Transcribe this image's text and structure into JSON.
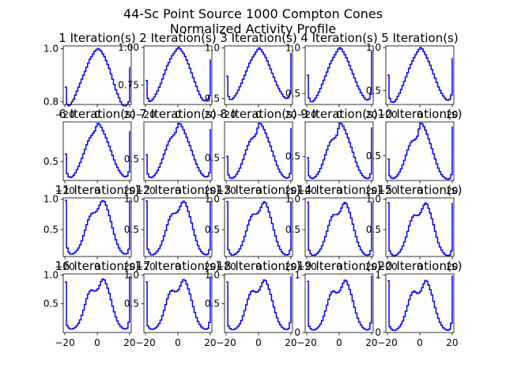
{
  "figure": {
    "title_line1": "44-Sc Point Source 1000 Compton Cones",
    "title_line2": "Normalized Activity Profile"
  },
  "chart_data": {
    "type": "line",
    "line_color": "#0000ff",
    "grid": false,
    "title": "44-Sc Point Source 1000 Compton Cones Normalized Activity Profile",
    "x": [
      -20,
      -19,
      -18,
      -17,
      -16,
      -15,
      -14,
      -13,
      -12,
      -11,
      -10,
      -9,
      -8,
      -7,
      -6,
      -5,
      -4,
      -3,
      -2,
      -1,
      0,
      1,
      2,
      3,
      4,
      5,
      6,
      7,
      8,
      9,
      10,
      11,
      12,
      13,
      14,
      15,
      16,
      17,
      18,
      19,
      20
    ],
    "xlim": [
      -21,
      21
    ],
    "xticks": [
      -20,
      0,
      20
    ],
    "panels": [
      {
        "title": "1 Iteration(s)",
        "ylim": [
          0.79,
          1.01
        ],
        "yticks": [
          0.8,
          1.0
        ],
        "ytick_labels": [
          "0.8",
          "1.0"
        ],
        "values": [
          0.855,
          0.79,
          0.785,
          0.79,
          0.8,
          0.81,
          0.825,
          0.84,
          0.855,
          0.87,
          0.885,
          0.9,
          0.915,
          0.93,
          0.945,
          0.96,
          0.97,
          0.98,
          0.99,
          0.995,
          1.0,
          0.995,
          0.99,
          0.98,
          0.97,
          0.955,
          0.94,
          0.925,
          0.905,
          0.885,
          0.865,
          0.845,
          0.83,
          0.815,
          0.8,
          0.79,
          0.785,
          0.785,
          0.79,
          0.8,
          0.93
        ]
      },
      {
        "title": "2 Iteration(s)",
        "ylim": [
          0.62,
          1.01
        ],
        "yticks": [
          0.75,
          1.0
        ],
        "ytick_labels": [
          "0.75",
          "1.00"
        ],
        "values": [
          0.78,
          0.66,
          0.64,
          0.645,
          0.655,
          0.67,
          0.69,
          0.71,
          0.735,
          0.76,
          0.79,
          0.82,
          0.85,
          0.88,
          0.9,
          0.925,
          0.945,
          0.96,
          0.975,
          0.99,
          1.0,
          0.99,
          0.975,
          0.96,
          0.94,
          0.915,
          0.89,
          0.86,
          0.83,
          0.8,
          0.77,
          0.74,
          0.71,
          0.685,
          0.665,
          0.65,
          0.645,
          0.645,
          0.655,
          0.68,
          0.92
        ]
      },
      {
        "title": "3 Iteration(s)",
        "ylim": [
          0.44,
          1.02
        ],
        "yticks": [
          0.5,
          1.0
        ],
        "ytick_labels": [
          "0.5",
          "1.0"
        ],
        "values": [
          0.72,
          0.52,
          0.49,
          0.49,
          0.505,
          0.525,
          0.55,
          0.58,
          0.615,
          0.65,
          0.69,
          0.73,
          0.77,
          0.81,
          0.85,
          0.88,
          0.91,
          0.935,
          0.96,
          0.985,
          1.0,
          0.985,
          0.96,
          0.935,
          0.905,
          0.87,
          0.83,
          0.79,
          0.75,
          0.71,
          0.67,
          0.63,
          0.6,
          0.57,
          0.545,
          0.52,
          0.505,
          0.5,
          0.51,
          0.55,
          0.95
        ]
      },
      {
        "title": "4 Iteration(s)",
        "ylim": [
          0.38,
          1.02
        ],
        "yticks": [
          0.5,
          1.0
        ],
        "ytick_labels": [
          "0.5",
          "1.0"
        ],
        "values": [
          0.7,
          0.45,
          0.41,
          0.41,
          0.425,
          0.45,
          0.48,
          0.515,
          0.555,
          0.6,
          0.645,
          0.69,
          0.735,
          0.78,
          0.825,
          0.86,
          0.895,
          0.925,
          0.955,
          0.985,
          1.0,
          0.985,
          0.955,
          0.925,
          0.89,
          0.85,
          0.805,
          0.76,
          0.715,
          0.67,
          0.625,
          0.58,
          0.545,
          0.51,
          0.48,
          0.455,
          0.435,
          0.43,
          0.44,
          0.49,
          0.97
        ]
      },
      {
        "title": "5 Iteration(s)",
        "ylim": [
          0.34,
          1.02
        ],
        "yticks": [
          0.5,
          1.0
        ],
        "ytick_labels": [
          "0.5",
          "1.0"
        ],
        "values": [
          0.68,
          0.41,
          0.37,
          0.365,
          0.375,
          0.4,
          0.435,
          0.47,
          0.515,
          0.56,
          0.61,
          0.66,
          0.71,
          0.76,
          0.805,
          0.845,
          0.885,
          0.92,
          0.95,
          0.98,
          1.0,
          0.985,
          0.955,
          0.92,
          0.88,
          0.84,
          0.795,
          0.745,
          0.695,
          0.645,
          0.595,
          0.545,
          0.505,
          0.47,
          0.44,
          0.415,
          0.395,
          0.39,
          0.4,
          0.45,
          0.88
        ]
      },
      {
        "title": "6 Iteration(s)",
        "ylim": [
          0.25,
          1.02
        ],
        "yticks": [
          0.5
        ],
        "ytick_labels": [
          "0.5"
        ],
        "values": [
          0.6,
          0.34,
          0.3,
          0.29,
          0.3,
          0.32,
          0.35,
          0.39,
          0.435,
          0.485,
          0.54,
          0.6,
          0.66,
          0.72,
          0.77,
          0.81,
          0.84,
          0.87,
          0.9,
          0.96,
          1.0,
          0.985,
          0.95,
          0.905,
          0.86,
          0.81,
          0.755,
          0.7,
          0.64,
          0.58,
          0.52,
          0.465,
          0.42,
          0.38,
          0.35,
          0.325,
          0.305,
          0.3,
          0.31,
          0.36,
          0.9
        ]
      },
      {
        "title": "7 Iteration(s)",
        "ylim": [
          0.2,
          1.02
        ],
        "yticks": [
          0.5
        ],
        "ytick_labels": [
          "0.5"
        ],
        "values": [
          0.56,
          0.29,
          0.25,
          0.24,
          0.25,
          0.27,
          0.3,
          0.34,
          0.385,
          0.44,
          0.5,
          0.565,
          0.63,
          0.695,
          0.75,
          0.79,
          0.815,
          0.84,
          0.87,
          0.94,
          1.0,
          0.99,
          0.955,
          0.91,
          0.86,
          0.805,
          0.745,
          0.685,
          0.62,
          0.555,
          0.49,
          0.43,
          0.38,
          0.335,
          0.3,
          0.275,
          0.255,
          0.25,
          0.26,
          0.31,
          0.92
        ]
      },
      {
        "title": "8 Iteration(s)",
        "ylim": [
          0.17,
          1.02
        ],
        "yticks": [
          0.5
        ],
        "ytick_labels": [
          "0.5"
        ],
        "values": [
          0.52,
          0.25,
          0.21,
          0.2,
          0.21,
          0.23,
          0.26,
          0.3,
          0.35,
          0.41,
          0.475,
          0.545,
          0.615,
          0.68,
          0.735,
          0.77,
          0.79,
          0.81,
          0.845,
          0.93,
          1.0,
          0.99,
          0.955,
          0.91,
          0.855,
          0.795,
          0.73,
          0.665,
          0.595,
          0.525,
          0.455,
          0.39,
          0.335,
          0.29,
          0.255,
          0.23,
          0.21,
          0.205,
          0.215,
          0.27,
          0.93
        ]
      },
      {
        "title": "9 Iteration(s)",
        "ylim": [
          0.14,
          1.02
        ],
        "yticks": [
          0.5
        ],
        "ytick_labels": [
          "0.5"
        ],
        "values": [
          0.48,
          0.21,
          0.18,
          0.17,
          0.18,
          0.2,
          0.23,
          0.27,
          0.32,
          0.38,
          0.45,
          0.525,
          0.6,
          0.665,
          0.72,
          0.75,
          0.765,
          0.785,
          0.82,
          0.92,
          1.0,
          0.99,
          0.955,
          0.905,
          0.845,
          0.78,
          0.71,
          0.64,
          0.565,
          0.49,
          0.415,
          0.35,
          0.295,
          0.25,
          0.215,
          0.19,
          0.175,
          0.17,
          0.18,
          0.24,
          0.94
        ]
      },
      {
        "title": "10 Iteration(s)",
        "ylim": [
          0.12,
          1.02
        ],
        "yticks": [
          0.5
        ],
        "ytick_labels": [
          "0.5"
        ],
        "values": [
          0.45,
          0.19,
          0.16,
          0.15,
          0.16,
          0.18,
          0.21,
          0.25,
          0.3,
          0.36,
          0.43,
          0.51,
          0.59,
          0.655,
          0.705,
          0.73,
          0.74,
          0.76,
          0.8,
          0.91,
          1.0,
          0.99,
          0.95,
          0.895,
          0.83,
          0.76,
          0.685,
          0.61,
          0.53,
          0.45,
          0.375,
          0.31,
          0.255,
          0.21,
          0.18,
          0.16,
          0.145,
          0.14,
          0.15,
          0.21,
          0.95
        ]
      },
      {
        "title": "11 Iteration(s)",
        "ylim": [
          0.06,
          1.02
        ],
        "yticks": [
          0.5,
          1.0
        ],
        "ytick_labels": [
          "0.5",
          "1.0"
        ],
        "values": [
          0.98,
          0.2,
          0.13,
          0.1,
          0.1,
          0.11,
          0.13,
          0.16,
          0.2,
          0.25,
          0.32,
          0.4,
          0.49,
          0.58,
          0.66,
          0.72,
          0.76,
          0.775,
          0.78,
          0.8,
          0.84,
          0.9,
          0.955,
          0.975,
          0.96,
          0.9,
          0.82,
          0.73,
          0.63,
          0.525,
          0.425,
          0.335,
          0.26,
          0.2,
          0.155,
          0.125,
          0.105,
          0.1,
          0.11,
          0.18,
          0.98
        ]
      },
      {
        "title": "12 Iteration(s)",
        "ylim": [
          0.06,
          1.02
        ],
        "yticks": [
          0.5,
          1.0
        ],
        "ytick_labels": [
          "0.5",
          "1.0"
        ],
        "values": [
          0.97,
          0.18,
          0.12,
          0.09,
          0.09,
          0.1,
          0.12,
          0.15,
          0.19,
          0.245,
          0.315,
          0.395,
          0.485,
          0.58,
          0.66,
          0.72,
          0.755,
          0.765,
          0.77,
          0.785,
          0.82,
          0.88,
          0.94,
          0.965,
          0.945,
          0.88,
          0.8,
          0.71,
          0.61,
          0.505,
          0.405,
          0.315,
          0.24,
          0.18,
          0.14,
          0.11,
          0.095,
          0.09,
          0.1,
          0.17,
          0.97
        ]
      },
      {
        "title": "13 Iteration(s)",
        "ylim": [
          0.06,
          1.02
        ],
        "yticks": [
          0.5,
          1.0
        ],
        "ytick_labels": [
          "0.5",
          "1.0"
        ],
        "values": [
          0.96,
          0.17,
          0.11,
          0.085,
          0.085,
          0.095,
          0.115,
          0.145,
          0.185,
          0.24,
          0.31,
          0.39,
          0.48,
          0.575,
          0.655,
          0.715,
          0.75,
          0.755,
          0.755,
          0.77,
          0.805,
          0.865,
          0.925,
          0.955,
          0.935,
          0.87,
          0.79,
          0.7,
          0.6,
          0.495,
          0.395,
          0.305,
          0.23,
          0.175,
          0.135,
          0.105,
          0.09,
          0.085,
          0.095,
          0.16,
          0.96
        ]
      },
      {
        "title": "14 Iteration(s)",
        "ylim": [
          0.06,
          1.02
        ],
        "yticks": [
          0.5,
          1.0
        ],
        "ytick_labels": [
          "0.5",
          "1.0"
        ],
        "values": [
          0.95,
          0.16,
          0.105,
          0.08,
          0.08,
          0.09,
          0.11,
          0.14,
          0.18,
          0.235,
          0.305,
          0.385,
          0.475,
          0.57,
          0.65,
          0.71,
          0.745,
          0.745,
          0.745,
          0.76,
          0.795,
          0.855,
          0.915,
          0.945,
          0.925,
          0.86,
          0.78,
          0.69,
          0.59,
          0.485,
          0.385,
          0.295,
          0.225,
          0.17,
          0.13,
          0.1,
          0.085,
          0.08,
          0.09,
          0.155,
          0.95
        ]
      },
      {
        "title": "15 Iteration(s)",
        "ylim": [
          0.06,
          1.02
        ],
        "yticks": [
          0.5,
          1.0
        ],
        "ytick_labels": [
          "0.5",
          "1.0"
        ],
        "values": [
          0.94,
          0.15,
          0.1,
          0.075,
          0.075,
          0.085,
          0.105,
          0.135,
          0.175,
          0.23,
          0.3,
          0.38,
          0.47,
          0.565,
          0.645,
          0.705,
          0.74,
          0.735,
          0.73,
          0.745,
          0.78,
          0.84,
          0.9,
          0.935,
          0.915,
          0.85,
          0.77,
          0.68,
          0.58,
          0.475,
          0.375,
          0.285,
          0.215,
          0.165,
          0.125,
          0.095,
          0.08,
          0.075,
          0.085,
          0.15,
          0.94
        ]
      },
      {
        "title": "16 Iteration(s)",
        "ylim": [
          0.0,
          1.02
        ],
        "yticks": [
          0.5,
          1.0
        ],
        "ytick_labels": [
          "0.5",
          "1.0"
        ],
        "values": [
          0.88,
          0.12,
          0.08,
          0.06,
          0.06,
          0.07,
          0.09,
          0.12,
          0.16,
          0.22,
          0.3,
          0.39,
          0.49,
          0.59,
          0.67,
          0.72,
          0.74,
          0.73,
          0.72,
          0.73,
          0.76,
          0.82,
          0.89,
          0.93,
          0.915,
          0.85,
          0.77,
          0.68,
          0.57,
          0.46,
          0.36,
          0.27,
          0.2,
          0.145,
          0.105,
          0.08,
          0.065,
          0.06,
          0.075,
          0.18,
          0.98
        ]
      },
      {
        "title": "17 Iteration(s)",
        "ylim": [
          0.0,
          1.02
        ],
        "yticks": [
          0.5,
          1.0
        ],
        "ytick_labels": [
          "0.5",
          "1.0"
        ],
        "values": [
          0.88,
          0.115,
          0.075,
          0.055,
          0.055,
          0.065,
          0.085,
          0.115,
          0.155,
          0.215,
          0.295,
          0.385,
          0.485,
          0.585,
          0.665,
          0.715,
          0.735,
          0.72,
          0.71,
          0.72,
          0.75,
          0.81,
          0.88,
          0.92,
          0.905,
          0.84,
          0.76,
          0.67,
          0.56,
          0.45,
          0.35,
          0.26,
          0.19,
          0.14,
          0.1,
          0.075,
          0.06,
          0.055,
          0.07,
          0.175,
          0.98
        ]
      },
      {
        "title": "18 Iteration(s)",
        "ylim": [
          0.0,
          1.02
        ],
        "yticks": [
          0.5,
          1.0
        ],
        "ytick_labels": [
          "0.5",
          "1.0"
        ],
        "values": [
          0.88,
          0.11,
          0.07,
          0.05,
          0.05,
          0.06,
          0.08,
          0.11,
          0.15,
          0.21,
          0.29,
          0.38,
          0.48,
          0.58,
          0.66,
          0.71,
          0.73,
          0.715,
          0.7,
          0.71,
          0.74,
          0.8,
          0.87,
          0.915,
          0.9,
          0.835,
          0.755,
          0.665,
          0.555,
          0.445,
          0.345,
          0.255,
          0.185,
          0.135,
          0.095,
          0.07,
          0.055,
          0.05,
          0.065,
          0.17,
          0.98
        ]
      },
      {
        "title": "19 Iteration(s)",
        "ylim": [
          0.0,
          1.02
        ],
        "yticks": [
          0.0,
          1.0
        ],
        "ytick_labels": [
          "0",
          "1"
        ],
        "values": [
          0.89,
          0.105,
          0.065,
          0.045,
          0.045,
          0.055,
          0.075,
          0.105,
          0.145,
          0.205,
          0.285,
          0.375,
          0.475,
          0.575,
          0.655,
          0.705,
          0.725,
          0.705,
          0.69,
          0.7,
          0.73,
          0.79,
          0.86,
          0.91,
          0.895,
          0.83,
          0.75,
          0.66,
          0.55,
          0.44,
          0.34,
          0.25,
          0.18,
          0.13,
          0.09,
          0.065,
          0.05,
          0.045,
          0.06,
          0.165,
          0.99
        ]
      },
      {
        "title": "20 Iteration(s)",
        "ylim": [
          0.0,
          1.02
        ],
        "yticks": [
          0.0,
          1.0
        ],
        "ytick_labels": [
          "0",
          "1"
        ],
        "values": [
          0.9,
          0.1,
          0.06,
          0.04,
          0.04,
          0.05,
          0.07,
          0.1,
          0.14,
          0.2,
          0.28,
          0.37,
          0.47,
          0.57,
          0.65,
          0.7,
          0.72,
          0.7,
          0.68,
          0.69,
          0.72,
          0.78,
          0.85,
          0.905,
          0.89,
          0.825,
          0.745,
          0.655,
          0.545,
          0.435,
          0.335,
          0.245,
          0.175,
          0.125,
          0.085,
          0.06,
          0.045,
          0.04,
          0.055,
          0.16,
          0.99
        ]
      }
    ]
  }
}
